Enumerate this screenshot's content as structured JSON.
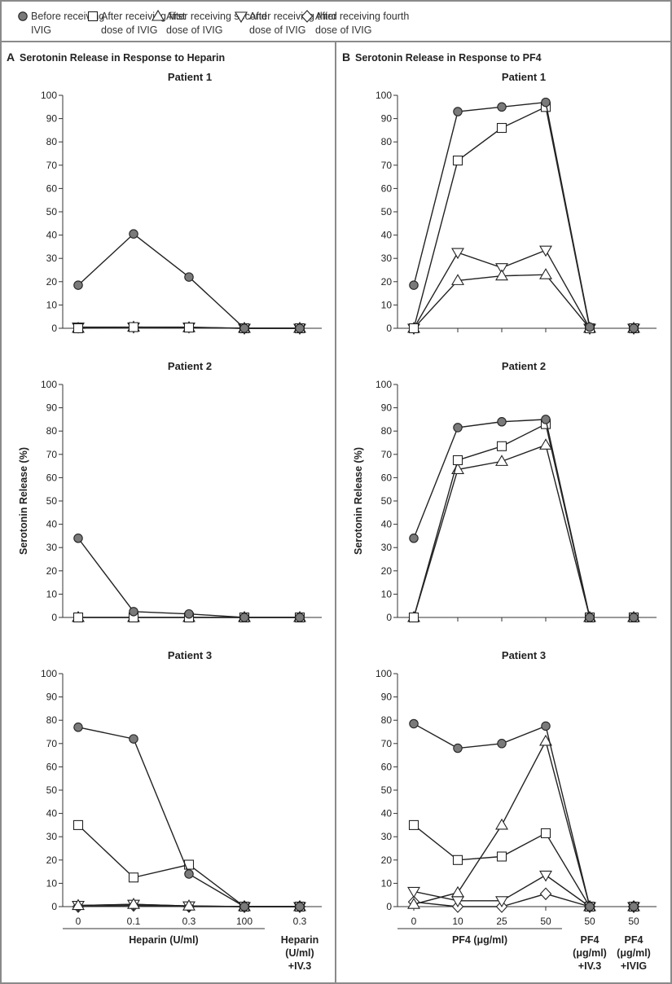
{
  "legend": [
    {
      "symbol": "filled-circle",
      "lines": [
        "Before receiving",
        "IVIG"
      ]
    },
    {
      "symbol": "open-square",
      "lines": [
        "After receiving first",
        "dose of IVIG"
      ]
    },
    {
      "symbol": "triangle-up",
      "lines": [
        "After receiving second",
        "dose of IVIG"
      ]
    },
    {
      "symbol": "triangle-down",
      "lines": [
        "After receiving third",
        "dose of IVIG"
      ]
    },
    {
      "symbol": "diamond",
      "lines": [
        "After receiving fourth",
        "dose of IVIG"
      ]
    }
  ],
  "colors": {
    "filled_marker": "#7a7a7a",
    "line": "#222222",
    "frame": "#8a8a8a"
  },
  "y_axis_label": "Serotonin Release (%)",
  "chart_data": [
    {
      "panel_letter": "A",
      "panel_title": "Serotonin Release in Response to Heparin",
      "type": "line",
      "ylim": [
        0,
        100
      ],
      "yticks": [
        0,
        10,
        20,
        30,
        40,
        50,
        60,
        70,
        80,
        90,
        100
      ],
      "categories": [
        "0",
        "0.1",
        "0.3",
        "100",
        "0.3"
      ],
      "xlabel_group": "Heparin (U/ml)",
      "xlabel_extra": [
        [
          "Heparin",
          "(U/ml)",
          "+IV.3"
        ]
      ],
      "patients": [
        {
          "title": "Patient 1",
          "series": [
            {
              "symbol": "filled-circle",
              "values": [
                18.5,
                40.5,
                22,
                0,
                0
              ]
            },
            {
              "symbol": "open-square",
              "values": [
                0,
                0.5,
                0.3,
                0,
                0
              ]
            },
            {
              "symbol": "triangle-up",
              "values": [
                0,
                0.5,
                0.3,
                0,
                0
              ]
            },
            {
              "symbol": "triangle-down",
              "values": [
                0.5,
                0.5,
                0.5,
                0,
                0
              ]
            }
          ]
        },
        {
          "title": "Patient 2",
          "series": [
            {
              "symbol": "filled-circle",
              "values": [
                34,
                2.5,
                1.5,
                0,
                0
              ]
            },
            {
              "symbol": "open-square",
              "values": [
                0,
                0,
                0,
                0,
                0
              ]
            },
            {
              "symbol": "triangle-up",
              "values": [
                0,
                0,
                0,
                0,
                0
              ]
            }
          ]
        },
        {
          "title": "Patient 3",
          "series": [
            {
              "symbol": "filled-circle",
              "values": [
                77,
                72,
                14,
                0,
                0
              ]
            },
            {
              "symbol": "open-square",
              "values": [
                35,
                12.5,
                18,
                0,
                0
              ]
            },
            {
              "symbol": "triangle-up",
              "values": [
                0.5,
                1,
                0.3,
                0,
                0
              ]
            },
            {
              "symbol": "triangle-down",
              "values": [
                0.5,
                1,
                0.3,
                0,
                0
              ]
            },
            {
              "symbol": "diamond",
              "values": [
                0,
                0.5,
                0,
                0,
                0
              ]
            }
          ]
        }
      ]
    },
    {
      "panel_letter": "B",
      "panel_title": "Serotonin Release in Response to PF4",
      "type": "line",
      "ylim": [
        0,
        100
      ],
      "yticks": [
        0,
        10,
        20,
        30,
        40,
        50,
        60,
        70,
        80,
        90,
        100
      ],
      "categories": [
        "0",
        "10",
        "25",
        "50",
        "50",
        "50"
      ],
      "xlabel_group": "PF4 (μg/ml)",
      "xlabel_extra": [
        [
          "PF4",
          "(μg/ml)",
          "+IV.3"
        ],
        [
          "PF4",
          "(μg/ml)",
          "+IVIG"
        ]
      ],
      "patients": [
        {
          "title": "Patient 1",
          "series": [
            {
              "symbol": "filled-circle",
              "values": [
                18.5,
                93,
                95,
                97,
                0.5,
                0
              ]
            },
            {
              "symbol": "open-square",
              "values": [
                0,
                72,
                86,
                95,
                0,
                0
              ]
            },
            {
              "symbol": "triangle-up",
              "values": [
                0,
                20.5,
                22.5,
                23,
                0,
                0
              ]
            },
            {
              "symbol": "triangle-down",
              "values": [
                0,
                32.5,
                26,
                33.5,
                0,
                0
              ]
            }
          ]
        },
        {
          "title": "Patient 2",
          "series": [
            {
              "symbol": "filled-circle",
              "values": [
                34,
                81.5,
                84,
                85,
                0,
                0
              ]
            },
            {
              "symbol": "open-square",
              "values": [
                0,
                67.5,
                73.5,
                83,
                0,
                0
              ]
            },
            {
              "symbol": "triangle-up",
              "values": [
                0,
                63.5,
                67,
                74,
                0,
                0
              ]
            }
          ]
        },
        {
          "title": "Patient 3",
          "series": [
            {
              "symbol": "filled-circle",
              "values": [
                78.5,
                68,
                70,
                77.5,
                0,
                0
              ]
            },
            {
              "symbol": "open-square",
              "values": [
                35,
                20,
                21.5,
                31.5,
                0,
                0
              ]
            },
            {
              "symbol": "triangle-up",
              "values": [
                1,
                6,
                35,
                71,
                0,
                0
              ]
            },
            {
              "symbol": "triangle-down",
              "values": [
                6.5,
                2.5,
                2.5,
                13.5,
                0,
                0
              ]
            },
            {
              "symbol": "diamond",
              "values": [
                2,
                0,
                0,
                5.5,
                0,
                0
              ]
            }
          ]
        }
      ]
    }
  ]
}
